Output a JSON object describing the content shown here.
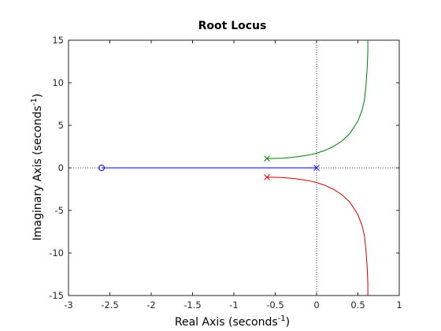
{
  "chart_data": {
    "type": "line",
    "title": "Root Locus",
    "xlabel": {
      "main": "Real Axis (seconds",
      "sup": "-1",
      "close": ")"
    },
    "ylabel": {
      "main": "Imaginary Axis (seconds",
      "sup": "-1",
      "close": ")"
    },
    "xlim": [
      -3,
      1
    ],
    "ylim": [
      -15,
      15
    ],
    "xticks": [
      -3,
      -2.5,
      -2,
      -1.5,
      -1,
      -0.5,
      0,
      0.5,
      1
    ],
    "xtick_labels": [
      "-3",
      "-2.5",
      "-2",
      "-1.5",
      "-1",
      "-0.5",
      "0",
      "0.5",
      "1"
    ],
    "yticks": [
      -15,
      -10,
      -5,
      0,
      5,
      10,
      15
    ],
    "ytick_labels": [
      "-15",
      "-10",
      "-5",
      "0",
      "5",
      "10",
      "15"
    ],
    "grid": false,
    "reference_lines": {
      "x": 0,
      "y": 0,
      "style": "dotted"
    },
    "colors": {
      "branch_real": "#0000ff",
      "branch_upper": "#008000",
      "branch_lower": "#cc0000",
      "axes": "#262626",
      "reference": "#000000"
    },
    "series": [
      {
        "color": "#0000ff",
        "x": [
          0,
          -0.5,
          -1,
          -1.5,
          -2,
          -2.5,
          -2.6
        ],
        "y": [
          0,
          0,
          0,
          0,
          0,
          0,
          0
        ]
      },
      {
        "color": "#008000",
        "x": [
          -0.6,
          -0.55,
          -0.5,
          -0.4,
          -0.3,
          -0.2,
          -0.1,
          0,
          0.1,
          0.2,
          0.3,
          0.4,
          0.5,
          0.55,
          0.58,
          0.6,
          0.61,
          0.62,
          0.62
        ],
        "y": [
          1.1,
          1.1,
          1.11,
          1.15,
          1.23,
          1.35,
          1.5,
          1.72,
          2.05,
          2.5,
          3.1,
          4.0,
          5.5,
          6.8,
          8.0,
          10.0,
          11.5,
          13.5,
          15
        ]
      },
      {
        "color": "#cc0000",
        "x": [
          -0.6,
          -0.55,
          -0.5,
          -0.4,
          -0.3,
          -0.2,
          -0.1,
          0,
          0.1,
          0.2,
          0.3,
          0.4,
          0.5,
          0.55,
          0.58,
          0.6,
          0.61,
          0.62,
          0.62
        ],
        "y": [
          -1.1,
          -1.1,
          -1.11,
          -1.15,
          -1.23,
          -1.35,
          -1.5,
          -1.72,
          -2.05,
          -2.5,
          -3.1,
          -4.0,
          -5.5,
          -6.8,
          -8.0,
          -10.0,
          -11.5,
          -13.5,
          -15
        ]
      }
    ],
    "poles": [
      {
        "x": 0,
        "y": 0,
        "color": "#0000ff"
      },
      {
        "x": -0.6,
        "y": 1.1,
        "color": "#008000"
      },
      {
        "x": -0.6,
        "y": -1.1,
        "color": "#cc0000"
      }
    ],
    "zeros": [
      {
        "x": -2.6,
        "y": 0,
        "color": "#0000ff"
      }
    ]
  }
}
